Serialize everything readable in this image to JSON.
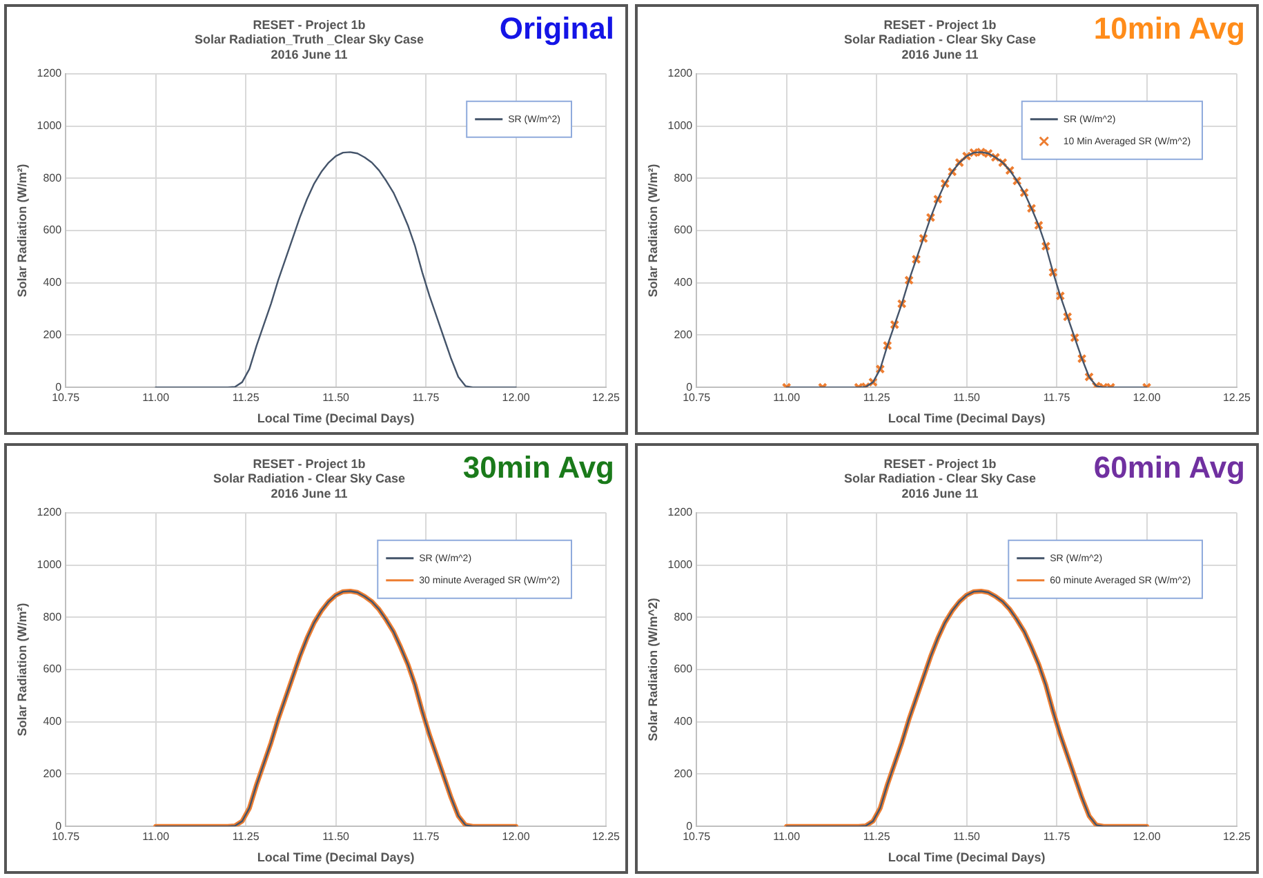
{
  "chart_data": [
    {
      "type": "line",
      "title": "RESET - Project 1b\nSolar Radiation_Truth _Clear Sky Case\n2016 June 11",
      "xlabel": "Local Time (Decimal Days)",
      "ylabel": "Solar Radiation (W/m²)",
      "annotations": [
        "Original"
      ],
      "grid": true,
      "legend": "top right",
      "xlim": [
        10.75,
        12.25
      ],
      "xticks": [
        10.75,
        {
          "value": 11,
          "label": "11.00"
        },
        11.25,
        {
          "value": 11.5,
          "label": "11.50"
        },
        11.75,
        {
          "value": 12,
          "label": "12.00"
        },
        12.25
      ],
      "ylim": [
        0,
        1200
      ],
      "yticks": [
        0,
        200,
        400,
        600,
        800,
        1000,
        1200
      ],
      "x": [
        11.0,
        11.1,
        11.2,
        11.22,
        11.24,
        11.26,
        11.28,
        11.3,
        11.32,
        11.34,
        11.36,
        11.38,
        11.4,
        11.42,
        11.44,
        11.46,
        11.48,
        11.5,
        11.52,
        11.54,
        11.56,
        11.58,
        11.6,
        11.62,
        11.64,
        11.66,
        11.68,
        11.7,
        11.72,
        11.74,
        11.76,
        11.78,
        11.8,
        11.82,
        11.84,
        11.86,
        11.88,
        11.9,
        12.0
      ],
      "series": [
        {
          "name": "SR (W/m^2)",
          "color": "#44546a",
          "values": [
            0,
            0,
            0,
            2,
            20,
            70,
            160,
            240,
            320,
            410,
            490,
            570,
            650,
            720,
            780,
            825,
            860,
            885,
            898,
            900,
            895,
            880,
            860,
            830,
            790,
            745,
            685,
            620,
            540,
            440,
            350,
            270,
            190,
            110,
            40,
            5,
            0,
            0,
            0
          ]
        }
      ]
    },
    {
      "type": "line",
      "title": "RESET - Project 1b\nSolar Radiation - Clear Sky Case\n2016 June 11",
      "xlabel": "Local Time (Decimal Days)",
      "ylabel": "Solar Radiation (W/m²)",
      "annotations": [
        "10min Avg"
      ],
      "grid": true,
      "legend": "top right",
      "xlim": [
        10.75,
        12.25
      ],
      "xticks": [
        10.75,
        {
          "value": 11,
          "label": "11.00"
        },
        11.25,
        {
          "value": 11.5,
          "label": "11.50"
        },
        11.75,
        {
          "value": 12,
          "label": "12.00"
        },
        12.25
      ],
      "ylim": [
        0,
        1200
      ],
      "yticks": [
        0,
        200,
        400,
        600,
        800,
        1000,
        1200
      ],
      "x": [
        11.0,
        11.1,
        11.2,
        11.22,
        11.24,
        11.26,
        11.28,
        11.3,
        11.32,
        11.34,
        11.36,
        11.38,
        11.4,
        11.42,
        11.44,
        11.46,
        11.48,
        11.5,
        11.52,
        11.54,
        11.56,
        11.58,
        11.6,
        11.62,
        11.64,
        11.66,
        11.68,
        11.7,
        11.72,
        11.74,
        11.76,
        11.78,
        11.8,
        11.82,
        11.84,
        11.86,
        11.88,
        11.9,
        12.0
      ],
      "series": [
        {
          "name": "SR (W/m^2)",
          "color": "#44546a",
          "values": [
            0,
            0,
            0,
            2,
            20,
            70,
            160,
            240,
            320,
            410,
            490,
            570,
            650,
            720,
            780,
            825,
            860,
            885,
            898,
            900,
            895,
            880,
            860,
            830,
            790,
            745,
            685,
            620,
            540,
            440,
            350,
            270,
            190,
            110,
            40,
            5,
            0,
            0,
            0
          ]
        },
        {
          "name": "10 Min Averaged SR (W/m^2)",
          "type": "scatter",
          "marker": "cross",
          "color": "#ed7d31",
          "values": [
            0,
            0,
            0,
            2,
            20,
            70,
            160,
            240,
            320,
            410,
            490,
            570,
            650,
            720,
            780,
            825,
            860,
            885,
            898,
            900,
            895,
            880,
            860,
            830,
            790,
            745,
            685,
            620,
            540,
            440,
            350,
            270,
            190,
            110,
            40,
            5,
            0,
            0,
            0
          ]
        }
      ]
    },
    {
      "type": "line",
      "title": "RESET - Project 1b\nSolar Radiation - Clear Sky Case\n2016 June 11",
      "xlabel": "Local Time (Decimal Days)",
      "ylabel": "Solar Radiation (W/m²)",
      "annotations": [
        "30min Avg"
      ],
      "grid": true,
      "legend": "top right",
      "xlim": [
        10.75,
        12.25
      ],
      "xticks": [
        10.75,
        {
          "value": 11,
          "label": "11.00"
        },
        11.25,
        {
          "value": 11.5,
          "label": "11.50"
        },
        11.75,
        {
          "value": 12,
          "label": "12.00"
        },
        12.25
      ],
      "ylim": [
        0,
        1200
      ],
      "yticks": [
        0,
        200,
        400,
        600,
        800,
        1000,
        1200
      ],
      "x": [
        11.0,
        11.1,
        11.2,
        11.22,
        11.24,
        11.26,
        11.28,
        11.3,
        11.32,
        11.34,
        11.36,
        11.38,
        11.4,
        11.42,
        11.44,
        11.46,
        11.48,
        11.5,
        11.52,
        11.54,
        11.56,
        11.58,
        11.6,
        11.62,
        11.64,
        11.66,
        11.68,
        11.7,
        11.72,
        11.74,
        11.76,
        11.78,
        11.8,
        11.82,
        11.84,
        11.86,
        11.88,
        11.9,
        12.0
      ],
      "series": [
        {
          "name": "SR (W/m^2)",
          "color": "#44546a",
          "values": [
            0,
            0,
            0,
            2,
            20,
            70,
            160,
            240,
            320,
            410,
            490,
            570,
            650,
            720,
            780,
            825,
            860,
            885,
            898,
            900,
            895,
            880,
            860,
            830,
            790,
            745,
            685,
            620,
            540,
            440,
            350,
            270,
            190,
            110,
            40,
            5,
            0,
            0,
            0
          ]
        },
        {
          "name": "30 minute Averaged SR (W/m^2)",
          "color": "#ed7d31",
          "values": [
            0,
            0,
            0,
            2,
            20,
            70,
            160,
            240,
            320,
            410,
            490,
            570,
            650,
            720,
            780,
            825,
            860,
            885,
            898,
            900,
            895,
            880,
            860,
            830,
            790,
            745,
            685,
            620,
            540,
            440,
            350,
            270,
            190,
            110,
            40,
            5,
            0,
            0,
            0
          ]
        }
      ]
    },
    {
      "type": "line",
      "title": "RESET - Project 1b\nSolar Radiation - Clear Sky Case\n2016 June 11",
      "xlabel": "Local Time (Decimal Days)",
      "ylabel": "Solar Radiation (W/m^2)",
      "annotations": [
        "60min Avg"
      ],
      "grid": true,
      "legend": "top right",
      "xlim": [
        10.75,
        12.25
      ],
      "xticks": [
        10.75,
        {
          "value": 11,
          "label": "11.00"
        },
        11.25,
        {
          "value": 11.5,
          "label": "11.50"
        },
        11.75,
        {
          "value": 12,
          "label": "12.00"
        },
        12.25
      ],
      "ylim": [
        0,
        1200
      ],
      "yticks": [
        0,
        200,
        400,
        600,
        800,
        1000,
        1200
      ],
      "x": [
        11.0,
        11.1,
        11.2,
        11.22,
        11.24,
        11.26,
        11.28,
        11.3,
        11.32,
        11.34,
        11.36,
        11.38,
        11.4,
        11.42,
        11.44,
        11.46,
        11.48,
        11.5,
        11.52,
        11.54,
        11.56,
        11.58,
        11.6,
        11.62,
        11.64,
        11.66,
        11.68,
        11.7,
        11.72,
        11.74,
        11.76,
        11.78,
        11.8,
        11.82,
        11.84,
        11.86,
        11.88,
        11.9,
        12.0
      ],
      "series": [
        {
          "name": "SR (W/m^2)",
          "color": "#44546a",
          "values": [
            0,
            0,
            0,
            2,
            20,
            70,
            160,
            240,
            320,
            410,
            490,
            570,
            650,
            720,
            780,
            825,
            860,
            885,
            898,
            900,
            895,
            880,
            860,
            830,
            790,
            745,
            685,
            620,
            540,
            440,
            350,
            270,
            190,
            110,
            40,
            5,
            0,
            0,
            0
          ]
        },
        {
          "name": "60 minute Averaged SR (W/m^2)",
          "color": "#ed7d31",
          "values": [
            0,
            0,
            0,
            2,
            20,
            70,
            160,
            240,
            320,
            410,
            490,
            570,
            650,
            720,
            780,
            825,
            860,
            885,
            898,
            900,
            895,
            880,
            860,
            830,
            790,
            745,
            685,
            620,
            540,
            440,
            350,
            270,
            190,
            110,
            40,
            5,
            0,
            0,
            0
          ]
        }
      ]
    }
  ]
}
